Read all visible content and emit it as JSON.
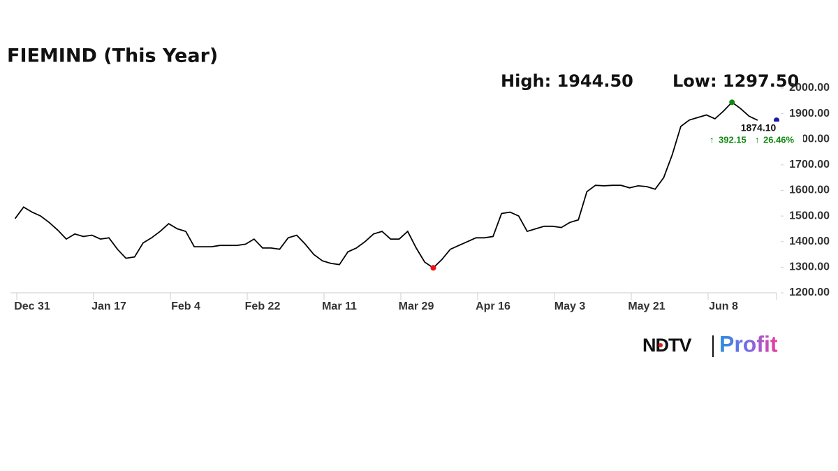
{
  "chart_data": {
    "type": "line",
    "title": "FIEMIND (This Year)",
    "high_label": "High: 1944.50",
    "low_label": "Low: 1297.50",
    "last_label": "1874.10",
    "change": "392.15",
    "change_pct": "26.46%",
    "brand": "NDTV",
    "brand_product": "Profit",
    "categories": [
      null,
      null,
      "Dec 31",
      null,
      null,
      null,
      null,
      null,
      null,
      null,
      null,
      "Jan 17",
      null,
      null,
      null,
      null,
      null,
      null,
      null,
      null,
      "Feb 4",
      null,
      null,
      null,
      null,
      null,
      null,
      null,
      null,
      "Feb 22",
      null,
      null,
      null,
      null,
      null,
      null,
      null,
      null,
      "Mar 11",
      null,
      null,
      null,
      null,
      null,
      null,
      null,
      null,
      "Mar 29",
      null,
      null,
      null,
      null,
      null,
      null,
      null,
      null,
      "Apr 16",
      null,
      null,
      null,
      null,
      null,
      null,
      null,
      null,
      "May 3",
      null,
      null,
      null,
      null,
      null,
      null,
      null,
      null,
      "May 21",
      null,
      null,
      null,
      null,
      null,
      null,
      null,
      null,
      "Jun 8",
      null,
      null,
      null,
      null
    ],
    "values": [
      1490,
      1535,
      1515,
      1500,
      1475,
      1445,
      1410,
      1430,
      1420,
      1425,
      1410,
      1415,
      1370,
      1335,
      1340,
      1395,
      1415,
      1440,
      1470,
      1450,
      1440,
      1380,
      1380,
      1380,
      1385,
      1385,
      1385,
      1390,
      1410,
      1375,
      1375,
      1370,
      1415,
      1425,
      1390,
      1350,
      1325,
      1315,
      1310,
      1360,
      1375,
      1400,
      1430,
      1440,
      1410,
      1410,
      1440,
      1375,
      1320,
      1297.5,
      1330,
      1370,
      1385,
      1400,
      1415,
      1415,
      1420,
      1510,
      1515,
      1500,
      1440,
      1450,
      1460,
      1460,
      1455,
      1475,
      1485,
      1595,
      1620,
      1618,
      1620,
      1620,
      1610,
      1618,
      1615,
      1605,
      1650,
      1740,
      1850,
      1875,
      1885,
      1895,
      1880,
      1910,
      1944.5,
      1920,
      1890,
      1874.1
    ],
    "color": "#000000",
    "high_color": "#118811",
    "low_color": "#ee1111",
    "last_color": "#1a1aaa",
    "change_color": "#118811",
    "ylim": [
      1200,
      2000
    ],
    "yticks": [
      {
        "value": 1200,
        "label": "1200.00"
      },
      {
        "value": 1300,
        "label": "1300.00"
      },
      {
        "value": 1400,
        "label": "1400.00"
      },
      {
        "value": 1500,
        "label": "1500.00"
      },
      {
        "value": 1600,
        "label": "1600.00"
      },
      {
        "value": 1700,
        "label": "1700.00"
      },
      {
        "value": 1800,
        "label": "1800.00"
      },
      {
        "value": 1900,
        "label": "1900.00"
      },
      {
        "value": 2000,
        "label": "2000.00"
      }
    ]
  }
}
